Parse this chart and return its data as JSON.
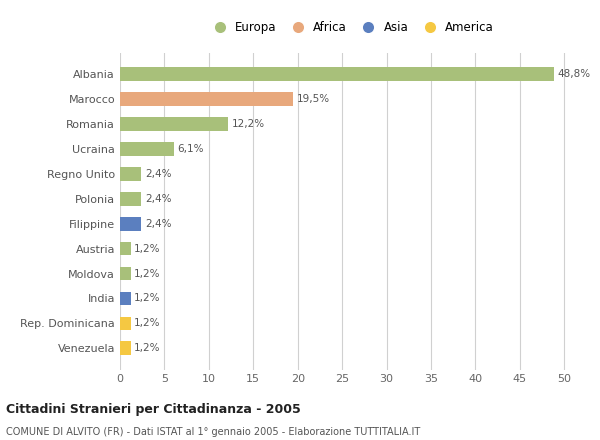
{
  "categories": [
    "Venezuela",
    "Rep. Dominicana",
    "India",
    "Moldova",
    "Austria",
    "Filippine",
    "Polonia",
    "Regno Unito",
    "Ucraina",
    "Romania",
    "Marocco",
    "Albania"
  ],
  "values": [
    1.2,
    1.2,
    1.2,
    1.2,
    1.2,
    2.4,
    2.4,
    2.4,
    6.1,
    12.2,
    19.5,
    48.8
  ],
  "colors": [
    "#f5c842",
    "#f5c842",
    "#5b7fbf",
    "#a8c07a",
    "#a8c07a",
    "#5b7fbf",
    "#a8c07a",
    "#a8c07a",
    "#a8c07a",
    "#a8c07a",
    "#e8a87c",
    "#a8c07a"
  ],
  "labels": [
    "1,2%",
    "1,2%",
    "1,2%",
    "1,2%",
    "1,2%",
    "2,4%",
    "2,4%",
    "2,4%",
    "6,1%",
    "12,2%",
    "19,5%",
    "48,8%"
  ],
  "legend_labels": [
    "Europa",
    "Africa",
    "Asia",
    "America"
  ],
  "legend_colors": [
    "#a8c07a",
    "#e8a87c",
    "#5b7fbf",
    "#f5c842"
  ],
  "title": "Cittadini Stranieri per Cittadinanza - 2005",
  "subtitle": "COMUNE DI ALVITO (FR) - Dati ISTAT al 1° gennaio 2005 - Elaborazione TUTTITALIA.IT",
  "xlim": [
    0,
    52
  ],
  "xticks": [
    0,
    5,
    10,
    15,
    20,
    25,
    30,
    35,
    40,
    45,
    50
  ],
  "background_color": "#ffffff",
  "bar_height": 0.55,
  "grid_color": "#d0d0d0"
}
